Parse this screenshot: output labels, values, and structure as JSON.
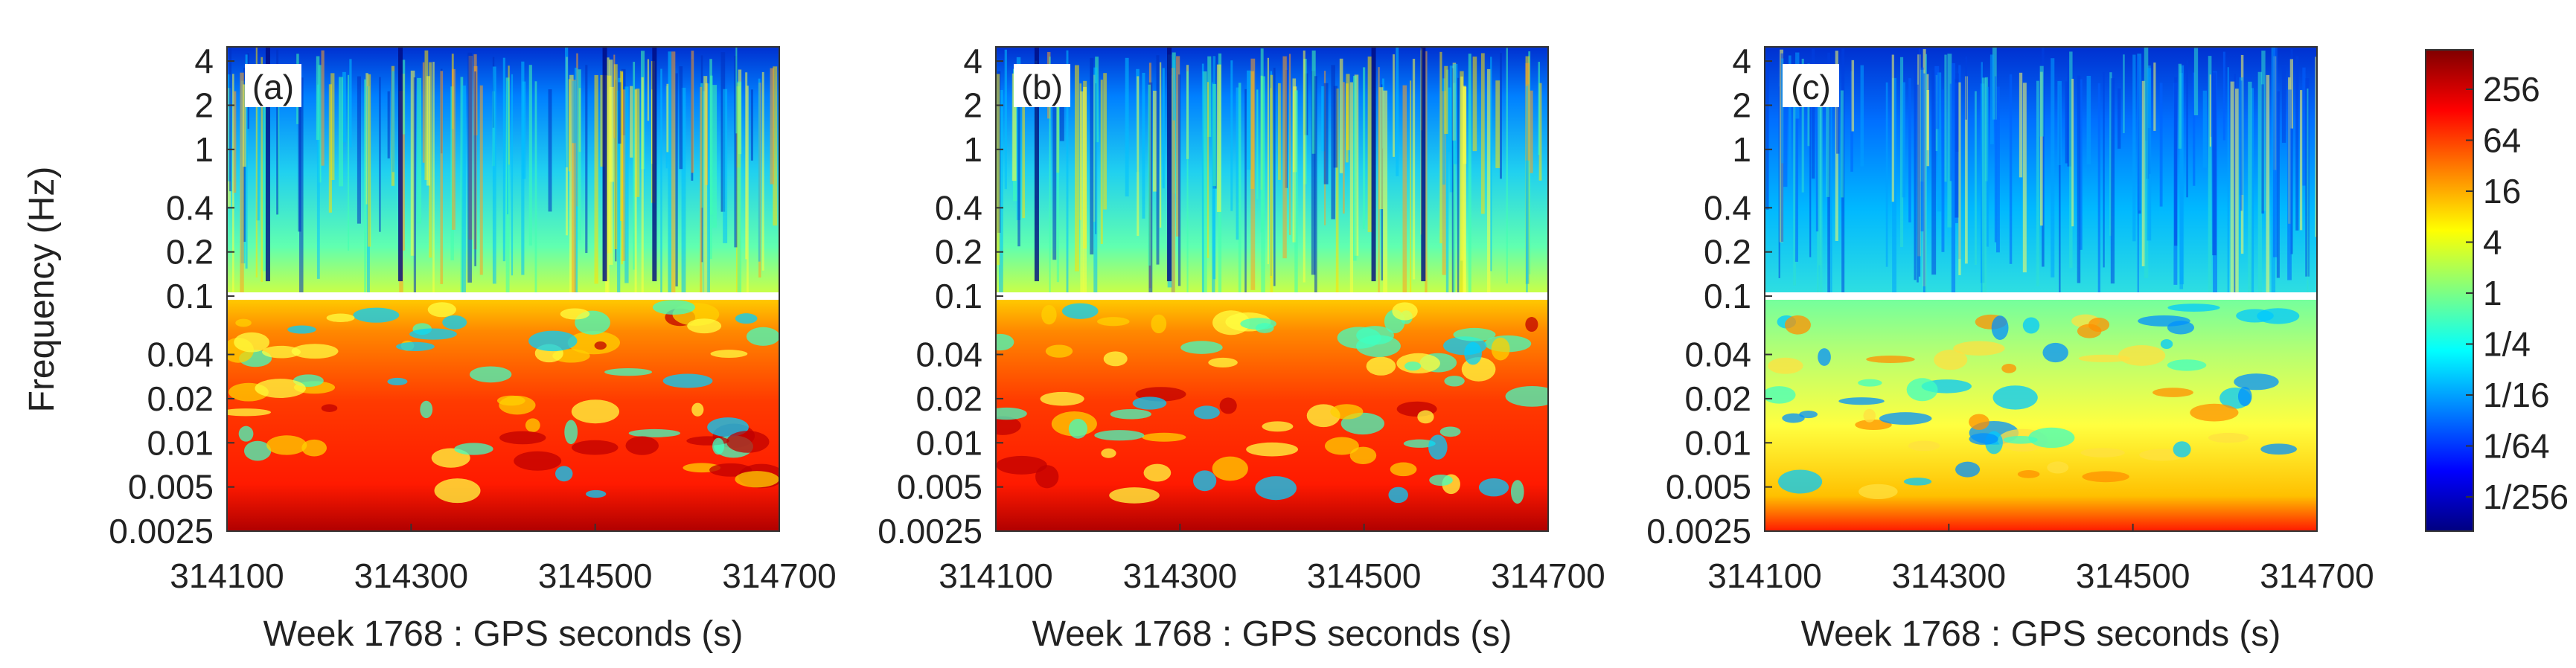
{
  "chart_data": {
    "type": "heatmap",
    "ylabel": "Frequency (Hz)",
    "y_scale": "log",
    "y_ticks": [
      "4",
      "2",
      "1",
      "0.4",
      "0.2",
      "0.1",
      "0.04",
      "0.02",
      "0.01",
      "0.005",
      "0.0025"
    ],
    "x_ticks": [
      "314100",
      "314300",
      "314500",
      "314700"
    ],
    "xlim": [
      314100,
      314700
    ],
    "ylim": [
      0.0025,
      5
    ],
    "separator_frequency": 0.1,
    "colorbar": {
      "scale": "log2",
      "ticks": [
        "256",
        "64",
        "16",
        "4",
        "1",
        "1/4",
        "1/16",
        "1/64",
        "1/256"
      ],
      "colors": [
        "#800000",
        "#ff0000",
        "#ff8000",
        "#ffff00",
        "#80ff80",
        "#00ffff",
        "#0080ff",
        "#0000ff",
        "#000080"
      ]
    },
    "panels": [
      {
        "label": "(a)",
        "xlabel": "Week 1768 : GPS seconds (s)"
      },
      {
        "label": "(b)",
        "xlabel": "Week 1768 : GPS seconds (s)"
      },
      {
        "label": "(c)",
        "xlabel": "Week 1768 : GPS seconds (s)"
      }
    ]
  }
}
